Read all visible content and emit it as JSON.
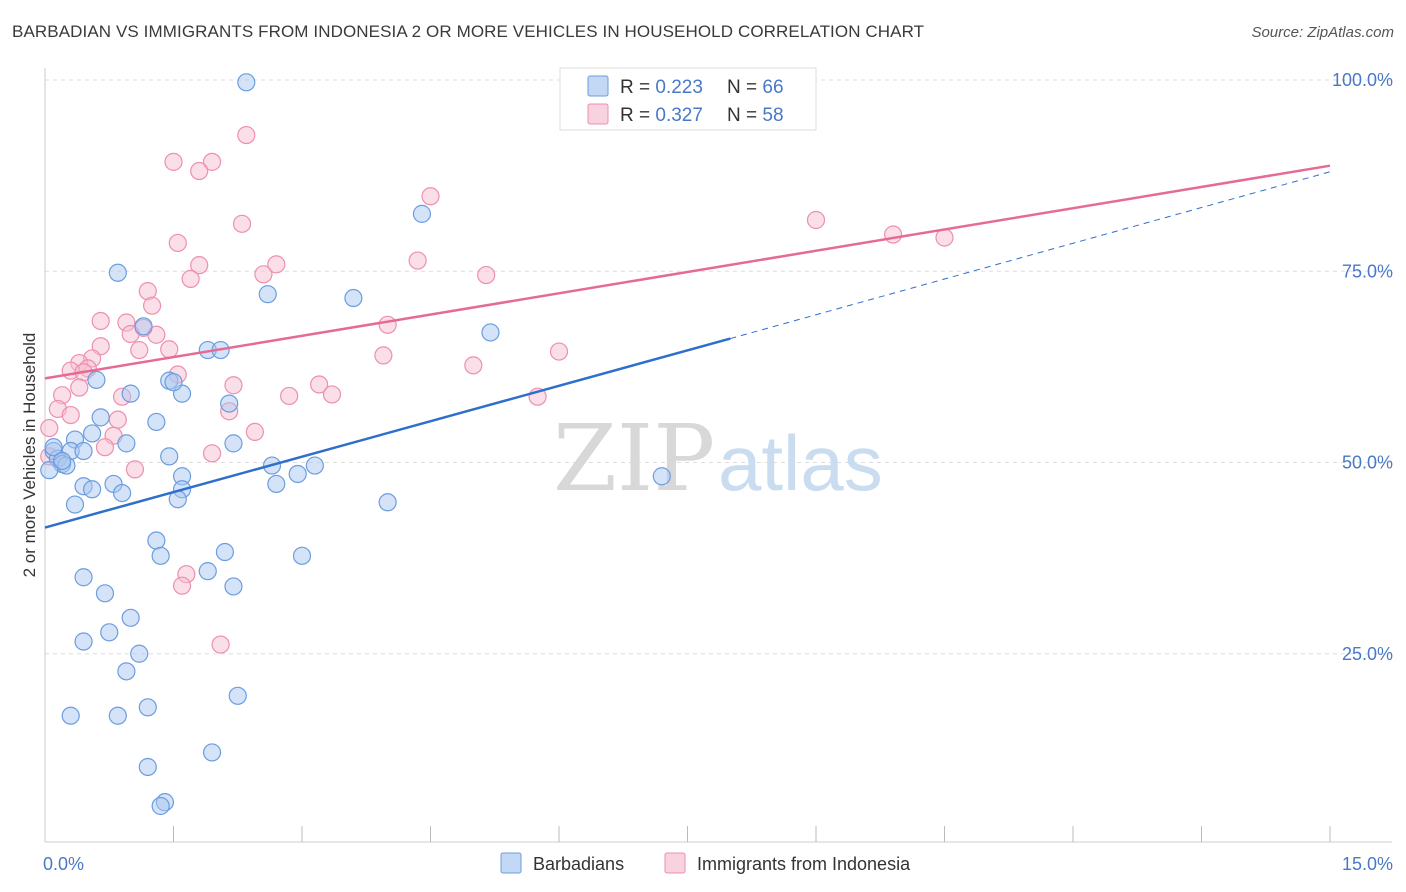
{
  "title": "BARBADIAN VS IMMIGRANTS FROM INDONESIA 2 OR MORE VEHICLES IN HOUSEHOLD CORRELATION CHART",
  "source": "Source: ZipAtlas.com",
  "watermark": {
    "zip": "ZIP",
    "atlas": "atlas"
  },
  "colors": {
    "blue_fill": "#a9c8ef",
    "blue_stroke": "#6b9de0",
    "blue_line": "#2f6fcc",
    "pink_fill": "#f6bfd1",
    "pink_stroke": "#ee8fae",
    "pink_line": "#e56b94",
    "tick_label": "#4a78c8",
    "grid": "#dddddd"
  },
  "legend": {
    "rows": [
      {
        "r_label": "R = ",
        "r_value": "0.223",
        "n_label": "N = ",
        "n_value": "66",
        "series": "blue"
      },
      {
        "r_label": "R = ",
        "r_value": "0.327",
        "n_label": "N = ",
        "n_value": "58",
        "series": "pink"
      }
    ]
  },
  "bottom_legend": [
    "Barbadians",
    "Immigrants from Indonesia"
  ],
  "chart_data": {
    "type": "scatter",
    "title": "BARBADIAN VS IMMIGRANTS FROM INDONESIA 2 OR MORE VEHICLES IN HOUSEHOLD CORRELATION CHART",
    "xlabel": "",
    "ylabel": "2 or more Vehicles in Household",
    "xlim": [
      0,
      15
    ],
    "ylim": [
      0,
      102
    ],
    "x_tick_labels": [
      {
        "value": 0,
        "label": "0.0%"
      },
      {
        "value": 15,
        "label": "15.0%"
      }
    ],
    "x_minor_ticks": [
      1.5,
      3.0,
      4.5,
      6.0,
      7.5,
      9.0,
      10.5,
      12.0,
      13.5,
      15.0
    ],
    "y_ticks": [
      {
        "value": 25,
        "label": "25.0%"
      },
      {
        "value": 50,
        "label": "50.0%"
      },
      {
        "value": 75,
        "label": "75.0%"
      },
      {
        "value": 100,
        "label": "100.0%"
      }
    ],
    "grid": true,
    "legend_position": "top-center",
    "series": [
      {
        "name": "Barbadians",
        "color": "blue",
        "r": 0.223,
        "n": 66,
        "trend": {
          "x0": 0.0,
          "y0": 41.5,
          "x1": 8.0,
          "y1": 66.2,
          "dashed_to_x": 15.0,
          "dashed_to_y": 88.0
        },
        "points": [
          [
            2.35,
            99.7
          ],
          [
            4.4,
            82.5
          ],
          [
            0.85,
            74.8
          ],
          [
            2.6,
            72.0
          ],
          [
            3.6,
            71.5
          ],
          [
            5.2,
            67.0
          ],
          [
            1.15,
            67.8
          ],
          [
            1.9,
            64.7
          ],
          [
            2.05,
            64.7
          ],
          [
            0.6,
            60.8
          ],
          [
            1.0,
            59.0
          ],
          [
            1.45,
            60.7
          ],
          [
            1.6,
            59.0
          ],
          [
            1.5,
            60.5
          ],
          [
            2.15,
            57.7
          ],
          [
            0.65,
            55.9
          ],
          [
            1.3,
            55.3
          ],
          [
            0.55,
            53.8
          ],
          [
            0.35,
            53.0
          ],
          [
            0.95,
            52.5
          ],
          [
            2.2,
            52.5
          ],
          [
            0.3,
            51.5
          ],
          [
            0.1,
            51.5
          ],
          [
            0.15,
            50.5
          ],
          [
            0.2,
            49.8
          ],
          [
            0.25,
            49.6
          ],
          [
            0.05,
            49.0
          ],
          [
            1.45,
            50.8
          ],
          [
            2.65,
            49.6
          ],
          [
            3.15,
            49.6
          ],
          [
            2.95,
            48.5
          ],
          [
            7.2,
            48.2
          ],
          [
            1.6,
            48.2
          ],
          [
            0.45,
            46.9
          ],
          [
            0.8,
            47.2
          ],
          [
            2.7,
            47.2
          ],
          [
            0.55,
            46.5
          ],
          [
            1.6,
            46.5
          ],
          [
            0.9,
            46.0
          ],
          [
            1.55,
            45.2
          ],
          [
            4.0,
            44.8
          ],
          [
            0.35,
            44.5
          ],
          [
            1.3,
            39.8
          ],
          [
            2.1,
            38.3
          ],
          [
            3.0,
            37.8
          ],
          [
            1.35,
            37.8
          ],
          [
            1.9,
            35.8
          ],
          [
            0.45,
            35.0
          ],
          [
            2.2,
            33.8
          ],
          [
            0.7,
            32.9
          ],
          [
            1.0,
            29.7
          ],
          [
            0.75,
            27.8
          ],
          [
            0.45,
            26.6
          ],
          [
            1.1,
            25.0
          ],
          [
            0.95,
            22.7
          ],
          [
            2.25,
            19.5
          ],
          [
            1.2,
            18.0
          ],
          [
            0.3,
            16.9
          ],
          [
            0.85,
            16.9
          ],
          [
            1.95,
            12.1
          ],
          [
            1.2,
            10.2
          ],
          [
            1.4,
            5.6
          ],
          [
            1.35,
            5.1
          ],
          [
            0.1,
            52.0
          ],
          [
            0.45,
            51.5
          ],
          [
            0.2,
            50.2
          ]
        ]
      },
      {
        "name": "Immigrants from Indonesia",
        "color": "pink",
        "r": 0.327,
        "n": 58,
        "trend": {
          "x0": 0.0,
          "y0": 61.0,
          "x1": 15.0,
          "y1": 88.8
        },
        "points": [
          [
            2.35,
            92.8
          ],
          [
            1.5,
            89.3
          ],
          [
            1.95,
            89.3
          ],
          [
            1.8,
            88.1
          ],
          [
            4.5,
            84.8
          ],
          [
            2.3,
            81.2
          ],
          [
            9.0,
            81.7
          ],
          [
            9.9,
            79.8
          ],
          [
            10.5,
            79.4
          ],
          [
            1.55,
            78.7
          ],
          [
            2.7,
            75.9
          ],
          [
            1.8,
            75.8
          ],
          [
            4.35,
            76.4
          ],
          [
            1.7,
            74.0
          ],
          [
            2.55,
            74.6
          ],
          [
            5.15,
            74.5
          ],
          [
            1.2,
            72.4
          ],
          [
            1.25,
            70.5
          ],
          [
            0.65,
            68.5
          ],
          [
            0.95,
            68.3
          ],
          [
            1.15,
            67.6
          ],
          [
            4.0,
            68.0
          ],
          [
            1.0,
            66.8
          ],
          [
            1.3,
            66.7
          ],
          [
            0.65,
            65.2
          ],
          [
            1.1,
            64.7
          ],
          [
            1.45,
            64.8
          ],
          [
            6.0,
            64.5
          ],
          [
            3.95,
            64.0
          ],
          [
            0.55,
            63.6
          ],
          [
            0.4,
            63.0
          ],
          [
            0.5,
            62.3
          ],
          [
            0.3,
            62.0
          ],
          [
            5.0,
            62.7
          ],
          [
            0.45,
            61.8
          ],
          [
            1.55,
            61.5
          ],
          [
            3.2,
            60.2
          ],
          [
            2.2,
            60.1
          ],
          [
            0.4,
            59.8
          ],
          [
            3.35,
            58.9
          ],
          [
            2.85,
            58.7
          ],
          [
            0.2,
            58.8
          ],
          [
            0.9,
            58.6
          ],
          [
            5.75,
            58.6
          ],
          [
            0.15,
            57.0
          ],
          [
            2.15,
            56.7
          ],
          [
            0.85,
            55.6
          ],
          [
            0.05,
            54.5
          ],
          [
            2.45,
            54.0
          ],
          [
            0.8,
            53.5
          ],
          [
            0.7,
            52.0
          ],
          [
            1.95,
            51.2
          ],
          [
            0.05,
            50.8
          ],
          [
            1.05,
            49.1
          ],
          [
            1.65,
            35.4
          ],
          [
            1.6,
            33.9
          ],
          [
            2.05,
            26.2
          ],
          [
            0.3,
            56.2
          ]
        ]
      }
    ]
  }
}
